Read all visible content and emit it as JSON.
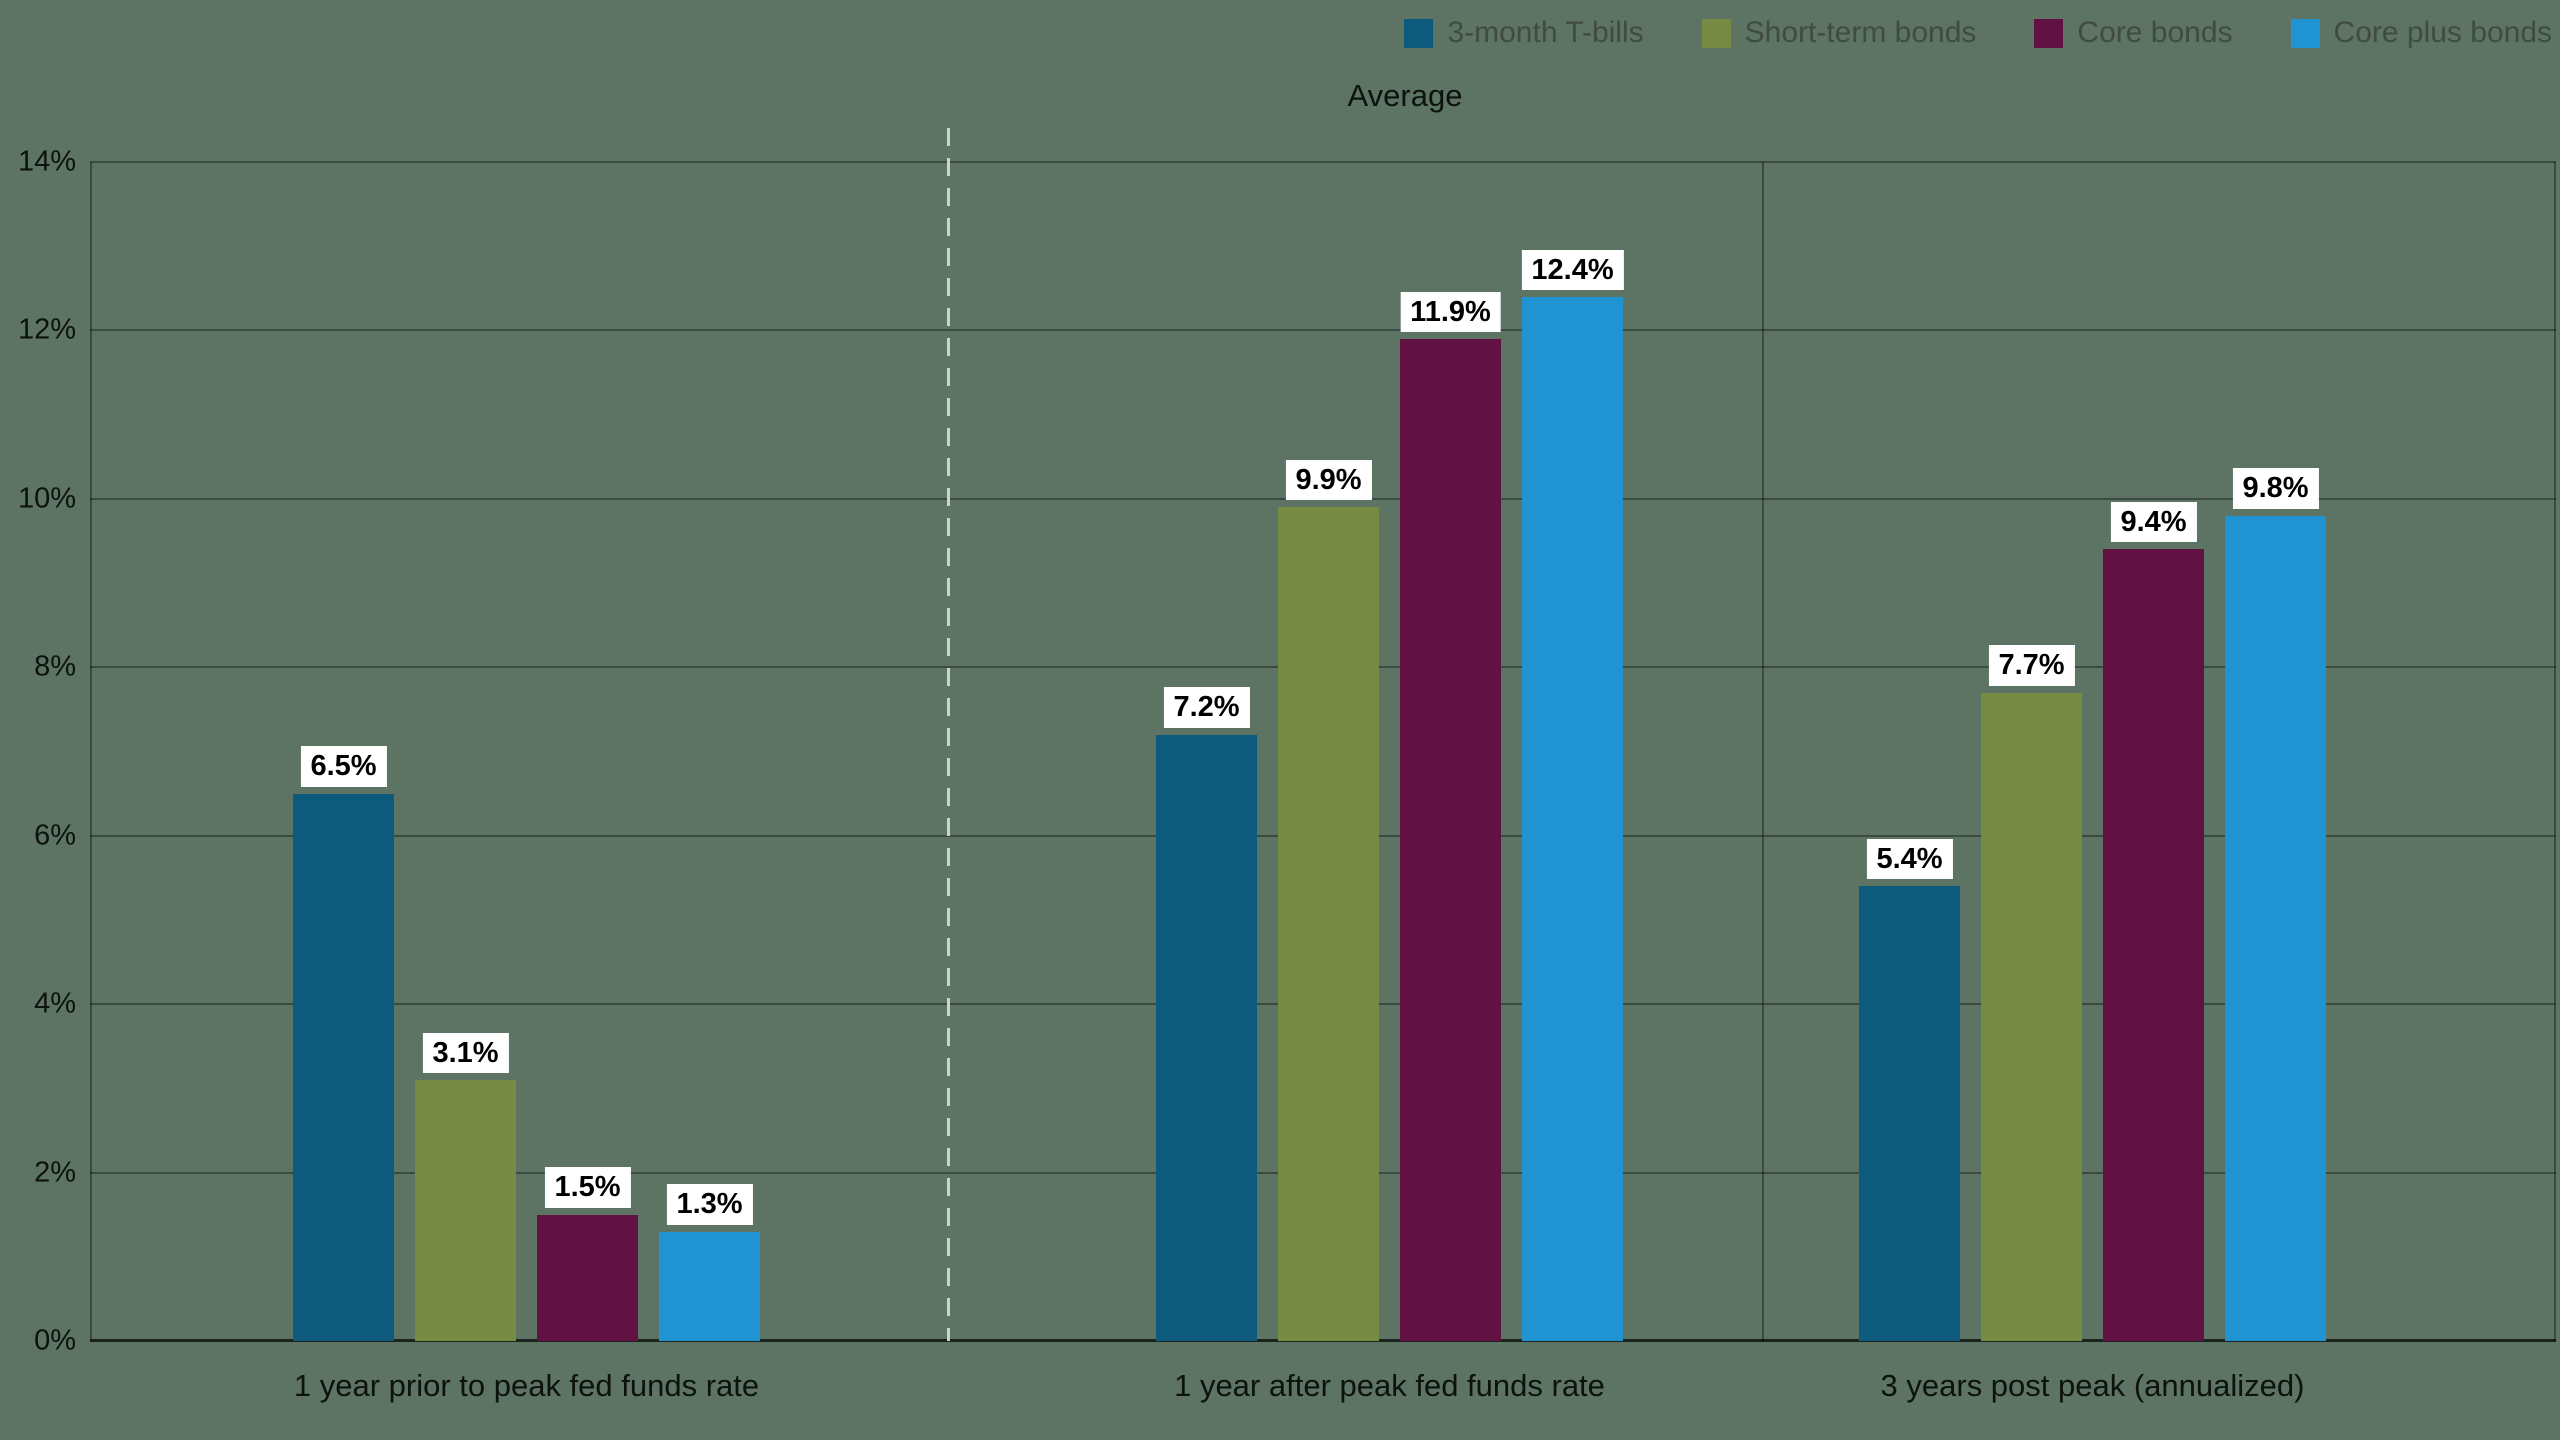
{
  "title": {
    "text": "Average"
  },
  "legend": {
    "text_color": "#3f4b43",
    "items": [
      {
        "label": "3-month T-bills",
        "color": "#0e5a7d"
      },
      {
        "label": "Short-term bonds",
        "color": "#788b45"
      },
      {
        "label": "Core bonds",
        "color": "#611243"
      },
      {
        "label": "Core plus bonds",
        "color": "#2094d3"
      }
    ]
  },
  "chart_data": {
    "type": "bar",
    "title": "Average",
    "categories": [
      "1 year prior to peak fed funds rate",
      "1 year after peak fed funds rate",
      "3 years post peak (annualized)"
    ],
    "series": [
      {
        "name": "3-month T-bills",
        "color": "#0e5a7d",
        "values": [
          6.5,
          7.2,
          5.4
        ],
        "labels": [
          "6.5%",
          "7.2%",
          "5.4%"
        ]
      },
      {
        "name": "Short-term bonds",
        "color": "#788b45",
        "values": [
          3.1,
          9.9,
          7.7
        ],
        "labels": [
          "3.1%",
          "9.9%",
          "7.7%"
        ]
      },
      {
        "name": "Core bonds",
        "color": "#611243",
        "values": [
          1.5,
          11.9,
          9.4
        ],
        "labels": [
          "1.5%",
          "11.9%",
          "9.4%"
        ]
      },
      {
        "name": "Core plus bonds",
        "color": "#2094d3",
        "values": [
          1.3,
          12.4,
          9.8
        ],
        "labels": [
          "1.3%",
          "12.4%",
          "9.8%"
        ]
      }
    ],
    "ylim": [
      0,
      14
    ],
    "yticks": [
      {
        "value": 0,
        "label": "0%"
      },
      {
        "value": 2,
        "label": "2%"
      },
      {
        "value": 4,
        "label": "4%"
      },
      {
        "value": 6,
        "label": "6%"
      },
      {
        "value": 8,
        "label": "8%"
      },
      {
        "value": 10,
        "label": "10%"
      },
      {
        "value": 12,
        "label": "12%"
      },
      {
        "value": 14,
        "label": "14%"
      }
    ],
    "grid": true,
    "legend_position": "top-right",
    "divider": {
      "after_category_index": 0,
      "style": "dashed"
    }
  },
  "colors": {
    "background": "#5d7464",
    "gridline": "rgba(0,0,0,0.35)",
    "axis_line": "#1a241d",
    "divider": "#ccd2cd",
    "data_label_bg": "#ffffff",
    "data_label_text": "#000000",
    "axis_text": "#0c120e",
    "legend_text": "#3f4b43"
  }
}
